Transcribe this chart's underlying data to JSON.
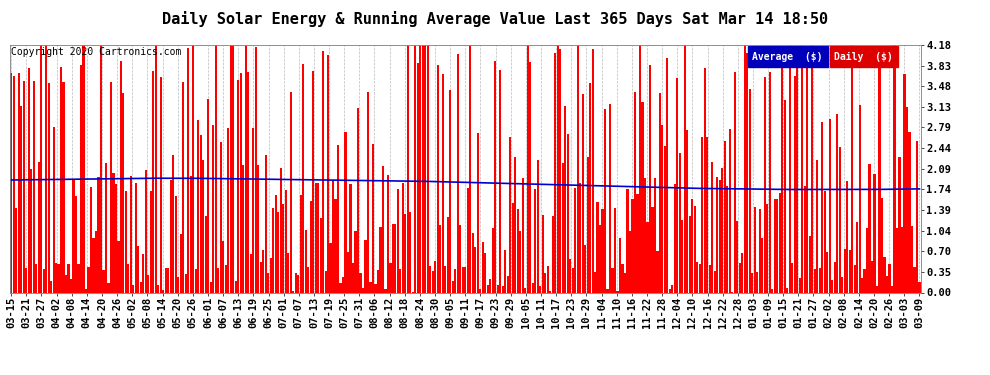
{
  "title": "Daily Solar Energy & Running Average Value Last 365 Days Sat Mar 14 18:50",
  "copyright": "Copyright 2020 Cartronics.com",
  "ylabel_right_ticks": [
    0.0,
    0.35,
    0.7,
    1.04,
    1.39,
    1.74,
    2.09,
    2.44,
    2.79,
    3.13,
    3.48,
    3.83,
    4.18
  ],
  "ylim": [
    0.0,
    4.18
  ],
  "bar_color": "#FF0000",
  "avg_line_color": "#0000CC",
  "background_color": "#FFFFFF",
  "grid_color": "#AAAAAA",
  "title_fontsize": 11,
  "copyright_fontsize": 7,
  "tick_fontsize": 7.5,
  "legend_avg_color": "#0000BB",
  "legend_daily_color": "#DD0000",
  "legend_text_color": "#FFFFFF",
  "x_labels": [
    "03-15",
    "03-21",
    "03-27",
    "04-02",
    "04-08",
    "04-14",
    "04-20",
    "04-26",
    "05-02",
    "05-08",
    "05-14",
    "05-20",
    "05-26",
    "06-01",
    "06-07",
    "06-13",
    "06-19",
    "06-25",
    "07-01",
    "07-07",
    "07-13",
    "07-19",
    "07-25",
    "07-31",
    "08-06",
    "08-12",
    "08-18",
    "08-24",
    "08-30",
    "09-05",
    "09-11",
    "09-17",
    "09-23",
    "09-29",
    "10-05",
    "10-11",
    "10-17",
    "10-23",
    "10-29",
    "11-04",
    "11-10",
    "11-16",
    "11-22",
    "11-28",
    "12-04",
    "12-10",
    "12-16",
    "12-22",
    "12-28",
    "01-03",
    "01-09",
    "01-15",
    "01-21",
    "01-27",
    "02-02",
    "02-08",
    "02-14",
    "02-20",
    "02-26",
    "03-03",
    "03-09"
  ],
  "num_bars": 365,
  "avg_line_y_knots": [
    1.9,
    1.91,
    1.92,
    1.93,
    1.93,
    1.92,
    1.91,
    1.9,
    1.89,
    1.88,
    1.86,
    1.84,
    1.82,
    1.8,
    1.78,
    1.76,
    1.75,
    1.74,
    1.74,
    1.74,
    1.75
  ]
}
